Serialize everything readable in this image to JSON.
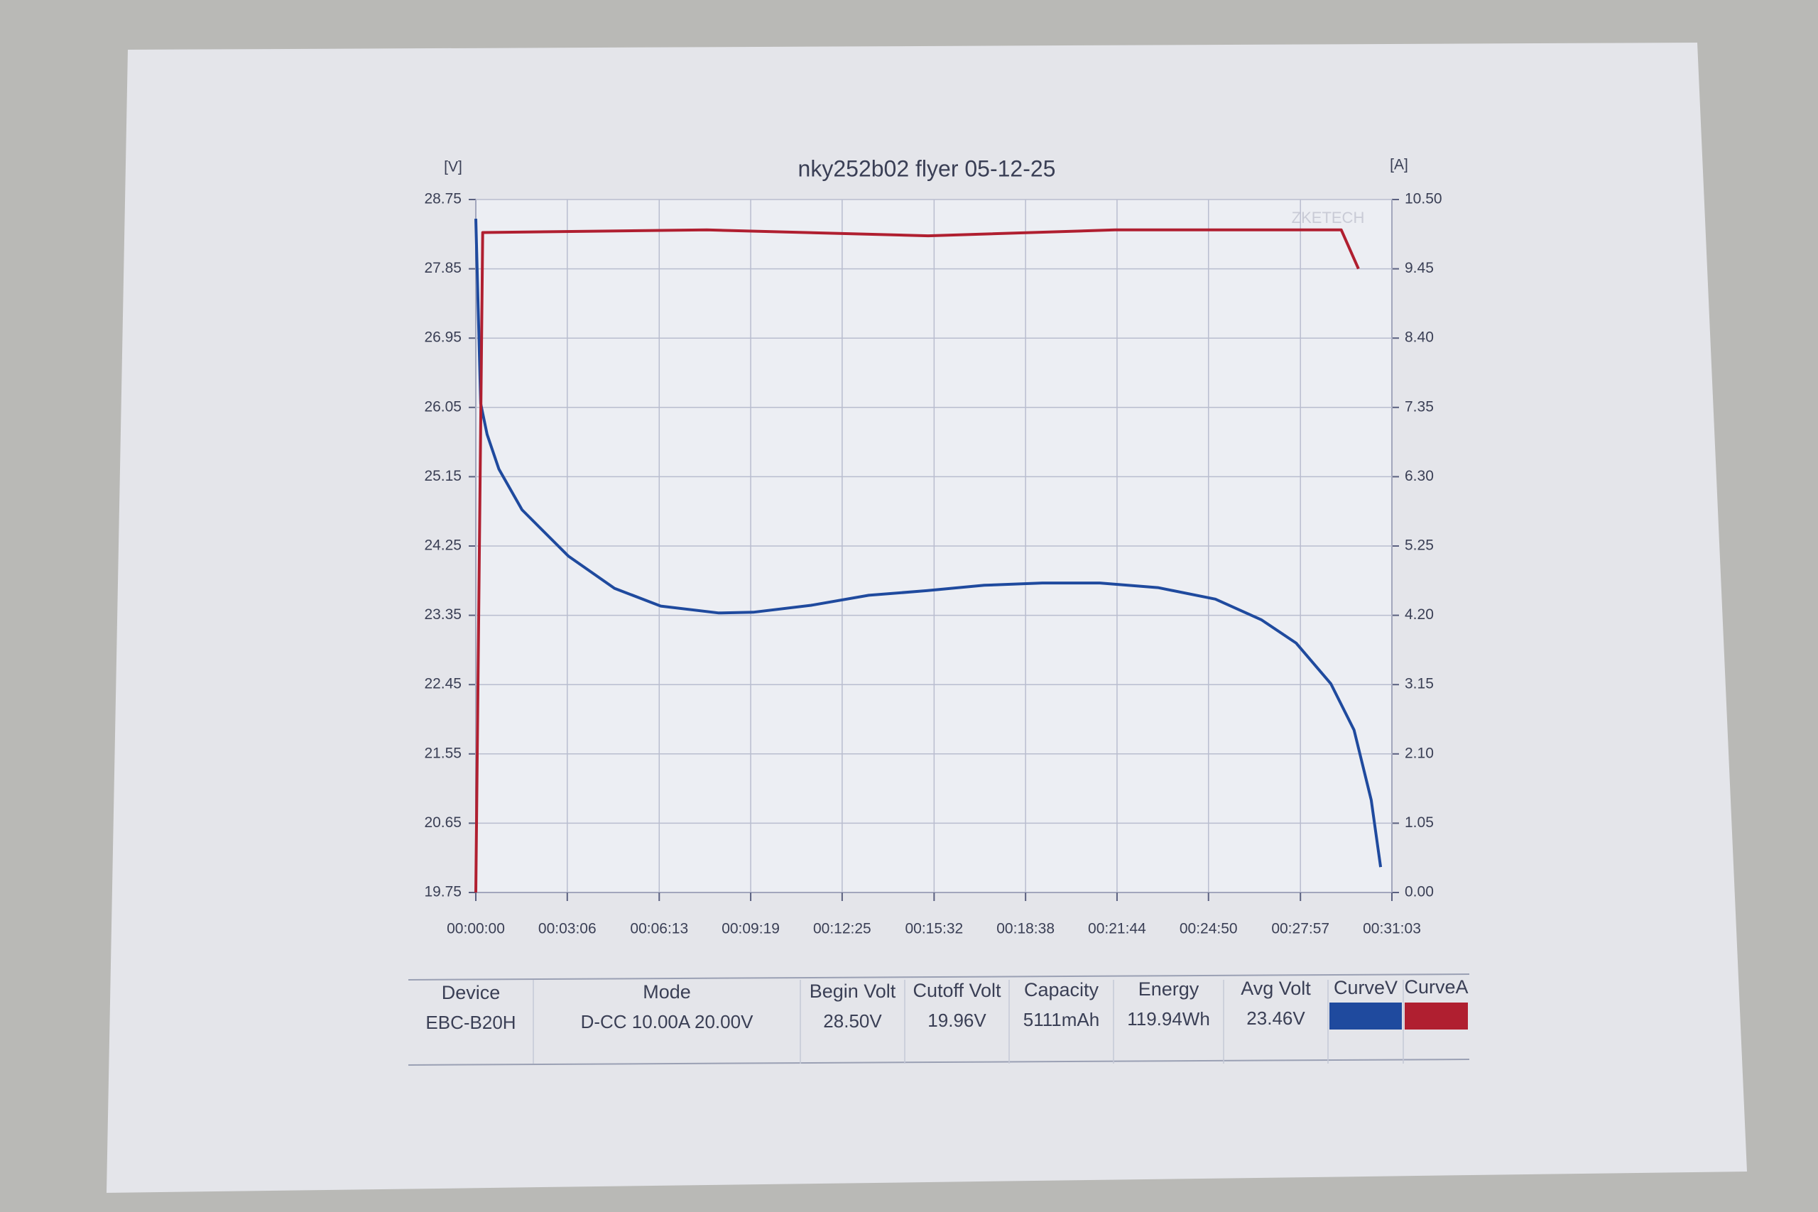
{
  "chart_data": {
    "type": "line",
    "title": "nky252b02 flyer 05-12-25",
    "y_label": "[V]",
    "y2_label": "[A]",
    "watermark": "ZKETECH",
    "xlim": [
      0,
      1863
    ],
    "xticks": [
      {
        "value": 0,
        "label": "00:00:00"
      },
      {
        "value": 186,
        "label": "00:03:06"
      },
      {
        "value": 373,
        "label": "00:06:13"
      },
      {
        "value": 559,
        "label": "00:09:19"
      },
      {
        "value": 745,
        "label": "00:12:25"
      },
      {
        "value": 932,
        "label": "00:15:32"
      },
      {
        "value": 1118,
        "label": "00:18:38"
      },
      {
        "value": 1304,
        "label": "00:21:44"
      },
      {
        "value": 1490,
        "label": "00:24:50"
      },
      {
        "value": 1677,
        "label": "00:27:57"
      },
      {
        "value": 1863,
        "label": "00:31:03"
      }
    ],
    "ylim": [
      19.75,
      28.75
    ],
    "yticks": [
      19.75,
      20.65,
      21.55,
      22.45,
      23.35,
      24.25,
      25.15,
      26.05,
      26.95,
      27.85,
      28.75
    ],
    "y2lim": [
      0,
      10.5
    ],
    "y2ticks": [
      {
        "value": 0,
        "label": "0.00"
      },
      1.05,
      {
        "value": 2.1,
        "label": "2.10"
      },
      3.15,
      {
        "value": 4.2,
        "label": "4.20"
      },
      5.25,
      {
        "value": 6.3,
        "label": "6.30"
      },
      7.35,
      {
        "value": 8.4,
        "label": "8.40"
      },
      9.45,
      {
        "value": 10.5,
        "label": "10.50"
      }
    ],
    "grid": true,
    "series": [
      {
        "name": "CurveV",
        "color": "#1f4a9e",
        "x": [
          0,
          10,
          23,
          47,
          94,
          188,
          282,
          376,
          494,
          564,
          682,
          799,
          917,
          1034,
          1152,
          1269,
          1387,
          1504,
          1598,
          1668,
          1739,
          1786,
          1821,
          1840
        ],
        "values": [
          28.5,
          26.1,
          25.7,
          25.25,
          24.72,
          24.12,
          23.7,
          23.47,
          23.38,
          23.39,
          23.48,
          23.61,
          23.67,
          23.74,
          23.77,
          23.77,
          23.71,
          23.56,
          23.29,
          22.99,
          22.46,
          21.86,
          20.95,
          20.08
        ]
      },
      {
        "name": "CurveA",
        "color": "#b01f30",
        "axis": "y2",
        "x": [
          0,
          14,
          470,
          920,
          1300,
          1760,
          1795
        ],
        "values": [
          0,
          10.0,
          10.04,
          9.95,
          10.04,
          10.04,
          9.45
        ]
      }
    ]
  },
  "table": {
    "headers": [
      "Device",
      "Mode",
      "Begin Volt",
      "Cutoff Volt",
      "Capacity",
      "Energy",
      "Avg Volt",
      "CurveV",
      "CurveA"
    ],
    "values": [
      "EBC-B20H",
      "D-CC 10.00A 20.00V",
      "28.50V",
      "19.96V",
      "5111mAh",
      "119.94Wh",
      "23.46V"
    ]
  }
}
